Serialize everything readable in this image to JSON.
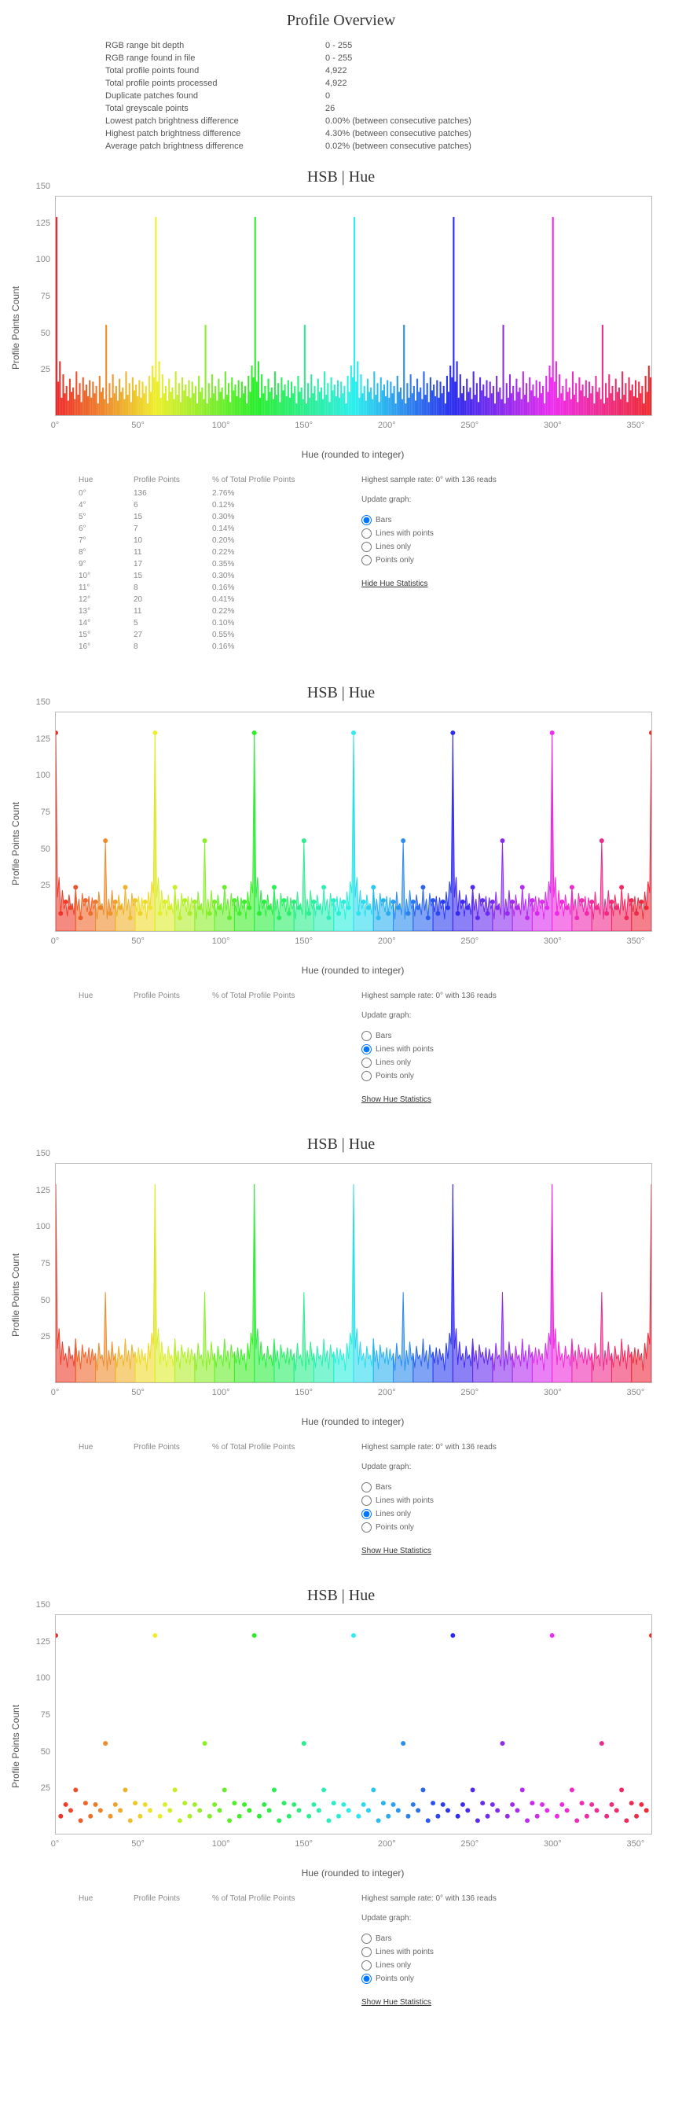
{
  "overview": {
    "title": "Profile Overview",
    "rows": [
      {
        "label": "RGB range bit depth",
        "value": "0 - 255"
      },
      {
        "label": "RGB range found in file",
        "value": "0 - 255"
      },
      {
        "label": "Total profile points found",
        "value": "4,922"
      },
      {
        "label": "Total profile points processed",
        "value": "4,922"
      },
      {
        "label": "Duplicate patches found",
        "value": "0"
      },
      {
        "label": "Total greyscale points",
        "value": "26"
      },
      {
        "label": "Lowest patch brightness difference",
        "value": "0.00% (between consecutive patches)"
      },
      {
        "label": "Highest patch brightness difference",
        "value": "4.30% (between consecutive patches)"
      },
      {
        "label": "Average patch brightness difference",
        "value": "0.02% (between consecutive patches)"
      }
    ]
  },
  "chart_common": {
    "title": "HSB | Hue",
    "y_label": "Profile Points Count",
    "x_label": "Hue (rounded to integer)",
    "ylim": [
      0,
      150
    ],
    "y_ticks": [
      25,
      50,
      75,
      100,
      125,
      150
    ],
    "x_ticks": [
      0,
      50,
      100,
      150,
      200,
      250,
      300,
      350
    ],
    "x_max": 360,
    "background_color": "#ffffff",
    "border_color": "#bbbbbb",
    "axis_text_color": "#888888",
    "axis_font_size": 11,
    "label_font_size": 12,
    "highest_sample": "Highest sample rate: 0° with 136 reads",
    "update_label": "Update graph:",
    "radio_options": [
      "Bars",
      "Lines with points",
      "Lines only",
      "Points only"
    ],
    "stats_headers": [
      "Hue",
      "Profile Points",
      "% of Total Profile Points"
    ]
  },
  "sections": [
    {
      "mode": "bars",
      "show_stats": true,
      "selected_radio": 0,
      "link_text": "Hide Hue Statistics"
    },
    {
      "mode": "lines_points",
      "show_stats": false,
      "selected_radio": 1,
      "link_text": "Show Hue Statistics"
    },
    {
      "mode": "lines",
      "show_stats": false,
      "selected_radio": 2,
      "link_text": "Show Hue Statistics"
    },
    {
      "mode": "points",
      "show_stats": false,
      "selected_radio": 3,
      "link_text": "Show Hue Statistics"
    }
  ],
  "stats_rows": [
    {
      "hue": "0°",
      "points": "136",
      "pct": "2.76%"
    },
    {
      "hue": "4°",
      "points": "6",
      "pct": "0.12%"
    },
    {
      "hue": "5°",
      "points": "15",
      "pct": "0.30%"
    },
    {
      "hue": "6°",
      "points": "7",
      "pct": "0.14%"
    },
    {
      "hue": "7°",
      "points": "10",
      "pct": "0.20%"
    },
    {
      "hue": "8°",
      "points": "11",
      "pct": "0.22%"
    },
    {
      "hue": "9°",
      "points": "17",
      "pct": "0.35%"
    },
    {
      "hue": "10°",
      "points": "15",
      "pct": "0.30%"
    },
    {
      "hue": "11°",
      "points": "8",
      "pct": "0.16%"
    },
    {
      "hue": "12°",
      "points": "20",
      "pct": "0.41%"
    },
    {
      "hue": "13°",
      "points": "11",
      "pct": "0.22%"
    },
    {
      "hue": "14°",
      "points": "5",
      "pct": "0.10%"
    },
    {
      "hue": "15°",
      "points": "27",
      "pct": "0.55%"
    },
    {
      "hue": "16°",
      "points": "8",
      "pct": "0.16%"
    }
  ],
  "hue_data": {
    "peaks": [
      0,
      60,
      120,
      180,
      240,
      300,
      360
    ],
    "peak_value": 136,
    "mid_peaks": [
      30,
      90,
      150,
      210,
      270,
      330
    ],
    "mid_value": 62,
    "base_pattern": [
      18,
      8,
      22,
      12,
      28,
      15,
      20,
      10,
      25,
      16,
      19,
      11,
      30,
      14,
      22,
      9,
      26,
      17,
      21,
      13,
      24,
      12,
      23,
      15,
      20,
      8,
      27,
      16,
      19,
      11
    ],
    "point_radius": 3,
    "line_width": 1,
    "fill_opacity": 0.6
  }
}
